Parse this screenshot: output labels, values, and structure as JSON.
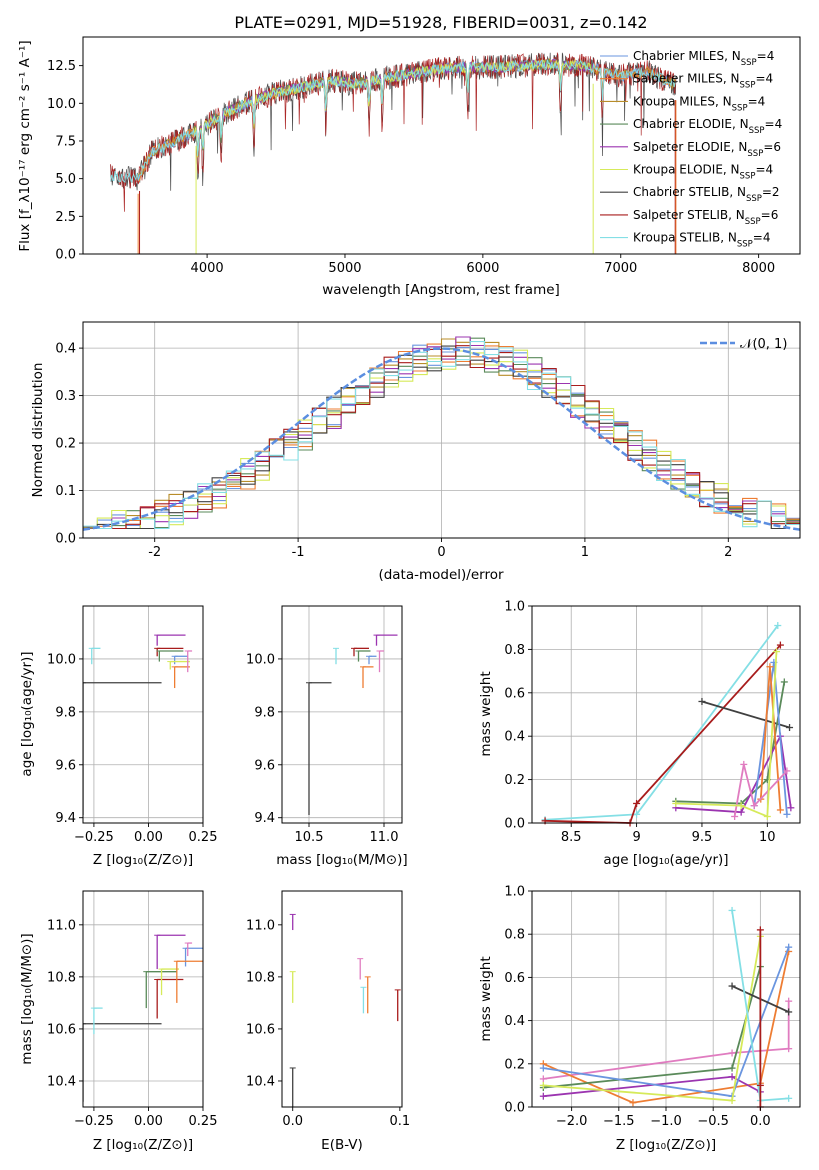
{
  "chart_data": [
    {
      "type": "line",
      "title": "PLATE=0291, MJD=51928, FIBERID=0031, z=0.142",
      "xlabel": "wavelength [Angstrom, rest frame]",
      "ylabel": "Flux [f_λ10⁻¹⁷ erg cm⁻² s⁻¹ A⁻¹]",
      "xlim": [
        3100,
        8300
      ],
      "ylim": [
        0,
        14.4
      ],
      "xticks": [
        4000,
        5000,
        6000,
        7000,
        8000
      ],
      "yticks": [
        0.0,
        2.5,
        5.0,
        7.5,
        10.0,
        12.5
      ],
      "grid": false,
      "legend_position": "top-right",
      "spectrum_anchors": {
        "x": [
          3300,
          3500,
          3600,
          3700,
          3850,
          4000,
          4100,
          4300,
          4500,
          4700,
          4900,
          5100,
          5300,
          5500,
          5700,
          5900,
          6100,
          6300,
          6500,
          6700,
          6800,
          6900,
          7000,
          7100,
          7200,
          7300,
          7400
        ],
        "y": [
          5.2,
          5.0,
          6.8,
          7.2,
          7.8,
          8.6,
          9.2,
          10.1,
          10.7,
          11.1,
          11.5,
          11.3,
          11.7,
          12.0,
          12.3,
          12.4,
          12.4,
          12.5,
          12.6,
          12.5,
          12.3,
          12.1,
          11.8,
          12.0,
          12.1,
          11.6,
          11.2
        ]
      },
      "series": [
        {
          "name": "Chabrier MILES, N_SSP=4",
          "name_main": "Chabrier MILES, N",
          "name_sub": "SSP",
          "name_tail": "=4",
          "color": "#6a95df",
          "xrange": [
            3500,
            7400
          ]
        },
        {
          "name": "Salpeter MILES, N_SSP=4",
          "name_main": "Salpeter MILES, N",
          "name_sub": "SSP",
          "name_tail": "=4",
          "color": "#ee7d33",
          "xrange": [
            3500,
            7400
          ]
        },
        {
          "name": "Kroupa MILES, N_SSP=4",
          "name_main": "Kroupa MILES, N",
          "name_sub": "SSP",
          "name_tail": "=4",
          "color": "#b88d2a",
          "xrange": [
            3500,
            7400
          ]
        },
        {
          "name": "Chabrier ELODIE, N_SSP=4",
          "name_main": "Chabrier ELODIE, N",
          "name_sub": "SSP",
          "name_tail": "=4",
          "color": "#5a8a5a",
          "xrange": [
            3900,
            6800
          ]
        },
        {
          "name": "Salpeter ELODIE, N_SSP=6",
          "name_main": "Salpeter ELODIE, N",
          "name_sub": "SSP",
          "name_tail": "=6",
          "color": "#9b34b0",
          "xrange": [
            3900,
            6800
          ]
        },
        {
          "name": "Kroupa ELODIE, N_SSP=4",
          "name_main": "Kroupa ELODIE, N",
          "name_sub": "SSP",
          "name_tail": "=4",
          "color": "#d6ea5a",
          "xrange": [
            3900,
            6800
          ]
        },
        {
          "name": "Chabrier STELIB, N_SSP=2",
          "name_main": "Chabrier STELIB, N",
          "name_sub": "SSP",
          "name_tail": "=2",
          "color": "#404040",
          "xrange": [
            3300,
            7400
          ]
        },
        {
          "name": "Salpeter STELIB, N_SSP=6",
          "name_main": "Salpeter STELIB, N",
          "name_sub": "SSP",
          "name_tail": "=6",
          "color": "#a81c1c",
          "xrange": [
            3300,
            7400
          ]
        },
        {
          "name": "Kroupa STELIB, N_SSP=4",
          "name_main": "Kroupa STELIB, N",
          "name_sub": "SSP",
          "name_tail": "=4",
          "color": "#84dfe5",
          "xrange": [
            3300,
            7400
          ]
        }
      ]
    },
    {
      "type": "bar",
      "xlabel": "(data-model)/error",
      "ylabel": "Normed distribution",
      "xlim": [
        -2.5,
        2.5
      ],
      "ylim": [
        0,
        0.455
      ],
      "xticks": [
        -2,
        -1,
        0,
        1,
        2
      ],
      "yticks": [
        0.0,
        0.1,
        0.2,
        0.3,
        0.4
      ],
      "grid": true,
      "legend_position": "top-right",
      "reference_curve": {
        "name": "𝒩(0, 1)",
        "mean": 0,
        "std": 1,
        "color": "#5b8ee0"
      },
      "bin_width": 0.1,
      "bin_start": -2.5
    },
    {
      "type": "scatter",
      "xlabel": "Z [log₁₀(Z/Z⊙)]",
      "ylabel": "age  [log₁₀(age/yr)]",
      "xlim": [
        -0.3,
        0.25
      ],
      "ylim": [
        9.38,
        10.2
      ],
      "xticks": [
        -0.25,
        0.0,
        0.25
      ],
      "xtick_labels": [
        "−0.25",
        "0.00",
        "0.25"
      ],
      "yticks": [
        9.4,
        9.6,
        9.8,
        10.0
      ],
      "grid": true,
      "points": [
        {
          "color": "#84dfe5",
          "x": -0.26,
          "xerr": 0.04,
          "y": 10.04,
          "yerr": 0.06
        },
        {
          "color": "#404040",
          "x": -0.3,
          "xerr": 0.36,
          "y": 9.91,
          "yerr": 0.5
        },
        {
          "color": "#9b34b0",
          "x": 0.04,
          "xerr": 0.13,
          "y": 10.09,
          "yerr": 0.04
        },
        {
          "color": "#a81c1c",
          "x": 0.04,
          "xerr": 0.12,
          "y": 10.04,
          "yerr": 0.03
        },
        {
          "color": "#5a8a5a",
          "x": 0.05,
          "xerr": 0.11,
          "y": 10.03,
          "yerr": 0.04
        },
        {
          "color": "#6a95df",
          "x": 0.12,
          "xerr": 0.06,
          "y": 10.01,
          "yerr": 0.03
        },
        {
          "color": "#d6ea5a",
          "x": 0.1,
          "xerr": 0.09,
          "y": 9.99,
          "yerr": 0.03
        },
        {
          "color": "#ee7d33",
          "x": 0.12,
          "xerr": 0.07,
          "y": 9.97,
          "yerr": 0.08
        },
        {
          "color": "#e07cc0",
          "x": 0.18,
          "xerr": 0.02,
          "y": 10.03,
          "yerr": 0.08
        }
      ]
    },
    {
      "type": "scatter",
      "xlabel": "mass [log₁₀(M/M⊙)]",
      "xlim": [
        10.32,
        11.12
      ],
      "ylim": [
        9.38,
        10.2
      ],
      "xticks": [
        10.5,
        11.0
      ],
      "xtick_labels": [
        "10.5",
        "11.0"
      ],
      "yticks": [
        9.4,
        9.6,
        9.8,
        10.0
      ],
      "grid": true,
      "points": [
        {
          "color": "#404040",
          "x": 10.5,
          "xerr": 0.15,
          "y": 9.91,
          "yerr": 0.5
        },
        {
          "color": "#84dfe5",
          "x": 10.68,
          "xerr": 0.0,
          "y": 10.04,
          "yerr": 0.06
        },
        {
          "color": "#9b34b0",
          "x": 10.95,
          "xerr": 0.14,
          "y": 10.09,
          "yerr": 0.04
        },
        {
          "color": "#a81c1c",
          "x": 10.8,
          "xerr": 0.1,
          "y": 10.04,
          "yerr": 0.03
        },
        {
          "color": "#5a8a5a",
          "x": 10.83,
          "xerr": 0.08,
          "y": 10.03,
          "yerr": 0.04
        },
        {
          "color": "#6a95df",
          "x": 10.9,
          "xerr": 0.05,
          "y": 10.01,
          "yerr": 0.03
        },
        {
          "color": "#ee7d33",
          "x": 10.86,
          "xerr": 0.07,
          "y": 9.97,
          "yerr": 0.08
        },
        {
          "color": "#e07cc0",
          "x": 10.97,
          "xerr": 0.03,
          "y": 10.03,
          "yerr": 0.08
        }
      ]
    },
    {
      "type": "line",
      "xlabel": "age  [log₁₀(age/yr)]",
      "ylabel": "mass weight",
      "xlim": [
        8.2,
        10.25
      ],
      "ylim": [
        0,
        1.0
      ],
      "xticks": [
        8.5,
        9.0,
        9.5,
        10.0
      ],
      "yticks": [
        0.0,
        0.2,
        0.4,
        0.6,
        0.8,
        1.0
      ],
      "grid": true,
      "series": [
        {
          "color": "#84dfe5",
          "x": [
            8.3,
            9.0,
            10.08
          ],
          "y": [
            0.015,
            0.04,
            0.91
          ]
        },
        {
          "color": "#a81c1c",
          "x": [
            8.3,
            8.95,
            9.0,
            10.1
          ],
          "y": [
            0.01,
            0.0,
            0.09,
            0.82
          ]
        },
        {
          "color": "#404040",
          "x": [
            9.5,
            10.17
          ],
          "y": [
            0.56,
            0.44
          ]
        },
        {
          "color": "#5a8a5a",
          "x": [
            9.3,
            9.8,
            10.0,
            10.13
          ],
          "y": [
            0.1,
            0.09,
            0.2,
            0.65
          ]
        },
        {
          "color": "#9b34b0",
          "x": [
            9.3,
            9.8,
            10.1,
            10.18
          ],
          "y": [
            0.07,
            0.05,
            0.4,
            0.07
          ]
        },
        {
          "color": "#6a95df",
          "x": [
            9.9,
            10.05,
            10.15
          ],
          "y": [
            0.08,
            0.74,
            0.04
          ]
        },
        {
          "color": "#ee7d33",
          "x": [
            9.95,
            10.02,
            10.1
          ],
          "y": [
            0.11,
            0.72,
            0.06
          ]
        },
        {
          "color": "#e07cc0",
          "x": [
            9.75,
            9.82,
            9.9,
            10.15
          ],
          "y": [
            0.03,
            0.27,
            0.08,
            0.24
          ]
        },
        {
          "color": "#d6ea5a",
          "x": [
            9.3,
            9.8,
            10.0,
            10.07
          ],
          "y": [
            0.09,
            0.08,
            0.03,
            0.79
          ]
        }
      ]
    },
    {
      "type": "scatter",
      "xlabel": "Z [log₁₀(Z/Z⊙)]",
      "ylabel": "mass [log₁₀(M/M⊙)]",
      "xlim": [
        -0.3,
        0.25
      ],
      "ylim": [
        10.3,
        11.13
      ],
      "xticks": [
        -0.25,
        0.0,
        0.25
      ],
      "xtick_labels": [
        "−0.25",
        "0.00",
        "0.25"
      ],
      "yticks": [
        10.4,
        10.6,
        10.8,
        11.0
      ],
      "grid": true,
      "points": [
        {
          "color": "#404040",
          "x": -0.3,
          "xerr": 0.36,
          "y": 10.62,
          "yerr": 0.3
        },
        {
          "color": "#84dfe5",
          "x": -0.25,
          "xerr": 0.04,
          "y": 10.68,
          "yerr": 0.1
        },
        {
          "color": "#9b34b0",
          "x": 0.04,
          "xerr": 0.13,
          "y": 10.96,
          "yerr": 0.13
        },
        {
          "color": "#a81c1c",
          "x": 0.04,
          "xerr": 0.12,
          "y": 10.79,
          "yerr": 0.15
        },
        {
          "color": "#5a8a5a",
          "x": -0.01,
          "xerr": 0.14,
          "y": 10.82,
          "yerr": 0.14
        },
        {
          "color": "#6a95df",
          "x": 0.17,
          "xerr": 0.08,
          "y": 10.91,
          "yerr": 0.07
        },
        {
          "color": "#d6ea5a",
          "x": 0.06,
          "xerr": 0.08,
          "y": 10.83,
          "yerr": 0.1
        },
        {
          "color": "#ee7d33",
          "x": 0.13,
          "xerr": 0.12,
          "y": 10.86,
          "yerr": 0.16
        },
        {
          "color": "#e07cc0",
          "x": 0.18,
          "xerr": 0.02,
          "y": 10.93,
          "yerr": 0.05
        }
      ]
    },
    {
      "type": "scatter",
      "xlabel": "E(B-V)",
      "xlim": [
        -0.01,
        0.102
      ],
      "ylim": [
        10.3,
        11.13
      ],
      "xticks": [
        0.0,
        0.1
      ],
      "xtick_labels": [
        "0.0",
        "0.1"
      ],
      "yticks": [
        10.4,
        10.6,
        10.8,
        11.0
      ],
      "grid": false,
      "points": [
        {
          "color": "#404040",
          "x": 0.0,
          "xerr": 0.0,
          "y": 10.45,
          "yerr": 0.15
        },
        {
          "color": "#9b34b0",
          "x": 0.0,
          "xerr": 0.0,
          "y": 11.04,
          "yerr": 0.06
        },
        {
          "color": "#d6ea5a",
          "x": 0.0,
          "xerr": 0.0,
          "y": 10.82,
          "yerr": 0.12
        },
        {
          "color": "#e07cc0",
          "x": 0.063,
          "xerr": 0.0,
          "y": 10.87,
          "yerr": 0.08
        },
        {
          "color": "#84dfe5",
          "x": 0.066,
          "xerr": 0.0,
          "y": 10.76,
          "yerr": 0.1
        },
        {
          "color": "#ee7d33",
          "x": 0.07,
          "xerr": 0.0,
          "y": 10.8,
          "yerr": 0.14
        },
        {
          "color": "#a81c1c",
          "x": 0.098,
          "xerr": 0.0,
          "y": 10.75,
          "yerr": 0.12
        }
      ]
    },
    {
      "type": "line",
      "xlabel": "Z [log₁₀(Z/Z⊙)]",
      "ylabel": "mass weight",
      "xlim": [
        -2.42,
        0.42
      ],
      "ylim": [
        0,
        1.0
      ],
      "xticks": [
        -2.0,
        -1.5,
        -1.0,
        -0.5,
        0.0
      ],
      "xtick_labels": [
        "−2.0",
        "−1.5",
        "−1.0",
        "−0.5",
        "0.0"
      ],
      "yticks": [
        0.0,
        0.2,
        0.4,
        0.6,
        0.8,
        1.0
      ],
      "grid": true,
      "series": [
        {
          "color": "#e07cc0",
          "x": [
            -2.3,
            -0.3,
            0.3,
            0.3
          ],
          "y": [
            0.13,
            0.25,
            0.27,
            0.49
          ]
        },
        {
          "color": "#ee7d33",
          "x": [
            -2.3,
            -1.35,
            0.0,
            0.3
          ],
          "y": [
            0.2,
            0.02,
            0.11,
            0.72
          ]
        },
        {
          "color": "#5a8a5a",
          "x": [
            -2.3,
            -0.3,
            0.0
          ],
          "y": [
            0.09,
            0.18,
            0.65
          ]
        },
        {
          "color": "#9b34b0",
          "x": [
            -2.3,
            -0.3,
            0.0
          ],
          "y": [
            0.05,
            0.14,
            0.07
          ]
        },
        {
          "color": "#6a95df",
          "x": [
            -2.3,
            -0.3,
            0.3
          ],
          "y": [
            0.18,
            0.05,
            0.74
          ]
        },
        {
          "color": "#d6ea5a",
          "x": [
            -2.3,
            -0.3,
            0.0
          ],
          "y": [
            0.1,
            0.03,
            0.79
          ]
        },
        {
          "color": "#404040",
          "x": [
            -0.3,
            0.3
          ],
          "y": [
            0.56,
            0.44
          ]
        },
        {
          "color": "#84dfe5",
          "x": [
            -0.3,
            0.0,
            0.3
          ],
          "y": [
            0.91,
            0.03,
            0.04
          ]
        },
        {
          "color": "#a81c1c",
          "x": [
            0.0,
            0.0,
            0.0
          ],
          "y": [
            0.0,
            0.1,
            0.82
          ]
        }
      ]
    }
  ]
}
